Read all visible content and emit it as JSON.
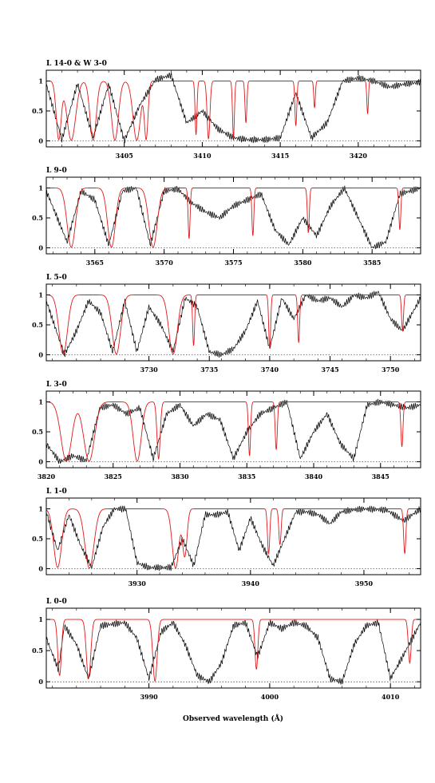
{
  "figure": {
    "xlabel": "Observed wavelength (Å)",
    "colors": {
      "data": "#000000",
      "model": "#e0191b",
      "zero_line": "#000000"
    }
  },
  "chart_data": [
    {
      "type": "line",
      "label": "L 14-0 & W 3-0",
      "xlim": [
        3400.0,
        3424.0
      ],
      "ylim": [
        -0.1,
        1.18
      ],
      "yticks": [
        0,
        0.5,
        1
      ],
      "ytick_labels": [
        "0",
        "0.5",
        "1"
      ],
      "xticks": [
        3405,
        3410,
        3415,
        3420
      ],
      "xtick_labels": [
        "3405",
        "3410",
        "3415",
        "3420"
      ],
      "series": [
        {
          "role": "model",
          "x": [
            3400.0,
            3402.0,
            3404.0,
            3406.0,
            3408.0,
            3410.0,
            3412.0,
            3414.0,
            3416.0,
            3418.0,
            3420.0,
            3422.0,
            3424.0
          ],
          "y": [
            1.0,
            1.0,
            1.0,
            1.0,
            1.0,
            1.0,
            1.0,
            1.0,
            1.0,
            1.0,
            1.0,
            1.0,
            1.0
          ]
        },
        {
          "role": "data",
          "x": [
            3400.0,
            3401.0,
            3402.0,
            3403.0,
            3404.0,
            3405.0,
            3406.0,
            3407.0,
            3408.0,
            3409.0,
            3410.0,
            3411.0,
            3412.0,
            3413.0,
            3414.0,
            3415.0,
            3416.0,
            3417.0,
            3418.0,
            3419.0,
            3420.0,
            3421.0,
            3422.0,
            3423.0,
            3424.0
          ],
          "y": [
            0.95,
            0.02,
            0.96,
            0.05,
            0.95,
            0.0,
            0.6,
            1.02,
            1.1,
            0.3,
            0.5,
            0.2,
            0.05,
            0.02,
            0.02,
            0.05,
            0.8,
            0.05,
            0.3,
            1.0,
            1.05,
            1.0,
            0.9,
            0.95,
            0.98
          ]
        }
      ],
      "lines": [
        {
          "center": 3400.8,
          "depth": 0.98,
          "width": 0.16
        },
        {
          "center": 3401.6,
          "depth": 0.99,
          "width": 0.28
        },
        {
          "center": 3403.0,
          "depth": 0.99,
          "width": 0.2
        },
        {
          "center": 3404.4,
          "depth": 0.99,
          "width": 0.22
        },
        {
          "center": 3405.8,
          "depth": 0.99,
          "width": 0.24
        },
        {
          "center": 3406.4,
          "depth": 0.98,
          "width": 0.12
        },
        {
          "center": 3409.6,
          "depth": 0.9,
          "width": 0.06
        },
        {
          "center": 3410.4,
          "depth": 0.97,
          "width": 0.09
        },
        {
          "center": 3412.0,
          "depth": 0.95,
          "width": 0.06
        },
        {
          "center": 3412.8,
          "depth": 0.7,
          "width": 0.06
        },
        {
          "center": 3416.0,
          "depth": 0.75,
          "width": 0.06
        },
        {
          "center": 3417.2,
          "depth": 0.45,
          "width": 0.05
        },
        {
          "center": 3420.6,
          "depth": 0.55,
          "width": 0.05
        }
      ]
    },
    {
      "type": "line",
      "label": "L 9-0",
      "xlim": [
        3561.5,
        3588.5
      ],
      "ylim": [
        -0.1,
        1.18
      ],
      "yticks": [
        0,
        0.5,
        1
      ],
      "ytick_labels": [
        "0",
        "0.5",
        "1"
      ],
      "xticks": [
        3565,
        3570,
        3575,
        3580,
        3585
      ],
      "xtick_labels": [
        "3565",
        "3570",
        "3575",
        "3580",
        "3585"
      ],
      "series": [
        {
          "role": "model",
          "x": [
            3561.5,
            3565.0,
            3570.0,
            3575.0,
            3580.0,
            3585.0,
            3588.5
          ],
          "y": [
            1.0,
            1.0,
            1.0,
            1.0,
            1.0,
            1.0,
            1.0
          ]
        },
        {
          "role": "data",
          "x": [
            3561.5,
            3563.0,
            3564.0,
            3565.0,
            3566.0,
            3567.0,
            3568.0,
            3569.0,
            3570.0,
            3571.0,
            3572.0,
            3573.0,
            3574.0,
            3575.0,
            3576.0,
            3577.0,
            3578.0,
            3579.0,
            3580.0,
            3581.0,
            3582.0,
            3583.0,
            3584.0,
            3585.0,
            3586.0,
            3587.0,
            3588.5
          ],
          "y": [
            0.95,
            0.1,
            0.95,
            0.8,
            0.05,
            0.95,
            1.0,
            0.05,
            0.95,
            0.98,
            0.75,
            0.6,
            0.5,
            0.7,
            0.8,
            0.9,
            0.3,
            0.05,
            0.5,
            0.2,
            0.7,
            1.0,
            0.5,
            0.0,
            0.1,
            0.9,
            1.0
          ]
        }
      ],
      "lines": [
        {
          "center": 3563.3,
          "depth": 0.99,
          "width": 0.3
        },
        {
          "center": 3566.2,
          "depth": 0.99,
          "width": 0.28
        },
        {
          "center": 3569.2,
          "depth": 0.99,
          "width": 0.3
        },
        {
          "center": 3571.8,
          "depth": 0.85,
          "width": 0.07
        },
        {
          "center": 3576.4,
          "depth": 0.8,
          "width": 0.07
        },
        {
          "center": 3580.4,
          "depth": 0.75,
          "width": 0.07
        },
        {
          "center": 3587.0,
          "depth": 0.7,
          "width": 0.07
        }
      ]
    },
    {
      "type": "line",
      "label": "L 5-0",
      "xlim": [
        3721.5,
        3752.5
      ],
      "ylim": [
        -0.1,
        1.18
      ],
      "yticks": [
        0,
        0.5,
        1
      ],
      "ytick_labels": [
        "0",
        "0.5",
        "1"
      ],
      "xticks": [
        3730,
        3735,
        3740,
        3745,
        3750
      ],
      "xtick_labels": [
        "3730",
        "3735",
        "3740",
        "3745",
        "3750"
      ],
      "series": [
        {
          "role": "model",
          "x": [
            3721.5,
            3730.0,
            3740.0,
            3752.5
          ],
          "y": [
            1.0,
            1.0,
            1.0,
            1.0
          ]
        },
        {
          "role": "data",
          "x": [
            3721.5,
            3723.0,
            3724.0,
            3725.0,
            3726.0,
            3727.0,
            3728.0,
            3729.0,
            3730.0,
            3731.0,
            3732.0,
            3733.0,
            3734.0,
            3735.0,
            3736.0,
            3737.0,
            3738.0,
            3739.0,
            3740.0,
            3741.0,
            3742.0,
            3743.0,
            3744.0,
            3745.0,
            3746.0,
            3747.0,
            3748.0,
            3749.0,
            3750.0,
            3751.0,
            3752.5
          ],
          "y": [
            0.9,
            0.0,
            0.4,
            0.9,
            0.7,
            0.05,
            0.9,
            0.05,
            0.8,
            0.5,
            0.05,
            0.95,
            0.8,
            0.05,
            0.0,
            0.1,
            0.4,
            0.9,
            0.1,
            0.95,
            0.6,
            1.0,
            0.9,
            0.95,
            0.8,
            1.0,
            0.95,
            1.05,
            0.6,
            0.4,
            0.95
          ]
        }
      ],
      "lines": [
        {
          "center": 3722.9,
          "depth": 0.99,
          "width": 0.35
        },
        {
          "center": 3727.3,
          "depth": 0.99,
          "width": 0.35
        },
        {
          "center": 3732.0,
          "depth": 0.99,
          "width": 0.35
        },
        {
          "center": 3733.7,
          "depth": 0.85,
          "width": 0.08
        },
        {
          "center": 3740.0,
          "depth": 0.9,
          "width": 0.08
        },
        {
          "center": 3742.4,
          "depth": 0.8,
          "width": 0.08
        },
        {
          "center": 3751.0,
          "depth": 0.6,
          "width": 0.08
        }
      ]
    },
    {
      "type": "line",
      "label": "L 3-0",
      "xlim": [
        3820.0,
        3848.0
      ],
      "ylim": [
        -0.1,
        1.18
      ],
      "yticks": [
        0,
        0.5,
        1
      ],
      "ytick_labels": [
        "0",
        "0.5",
        "1"
      ],
      "xticks": [
        3820,
        3825,
        3830,
        3835,
        3840,
        3845
      ],
      "xtick_labels": [
        "3820",
        "3825",
        "3830",
        "3835",
        "3840",
        "3845"
      ],
      "series": [
        {
          "role": "model",
          "x": [
            3820.0,
            3830.0,
            3840.0,
            3848.0
          ],
          "y": [
            1.0,
            1.0,
            1.0,
            1.0
          ]
        },
        {
          "role": "data",
          "x": [
            3820.0,
            3821.0,
            3822.0,
            3823.0,
            3824.0,
            3825.0,
            3826.0,
            3827.0,
            3828.0,
            3829.0,
            3830.0,
            3831.0,
            3832.0,
            3833.0,
            3834.0,
            3835.0,
            3836.0,
            3837.0,
            3838.0,
            3839.0,
            3840.0,
            3841.0,
            3842.0,
            3843.0,
            3844.0,
            3845.0,
            3846.0,
            3847.0,
            3848.0
          ],
          "y": [
            0.3,
            0.0,
            0.1,
            0.02,
            0.9,
            0.95,
            0.8,
            0.9,
            0.05,
            0.8,
            0.95,
            0.6,
            0.8,
            0.7,
            0.05,
            0.5,
            0.8,
            0.9,
            1.0,
            0.05,
            0.5,
            0.8,
            0.3,
            0.05,
            0.95,
            1.0,
            0.95,
            0.9,
            0.95
          ]
        }
      ],
      "lines": [
        {
          "center": 3821.5,
          "depth": 0.99,
          "width": 0.4
        },
        {
          "center": 3823.2,
          "depth": 0.99,
          "width": 0.4
        },
        {
          "center": 3826.8,
          "depth": 0.99,
          "width": 0.3
        },
        {
          "center": 3828.4,
          "depth": 0.95,
          "width": 0.12
        },
        {
          "center": 3835.2,
          "depth": 0.9,
          "width": 0.08
        },
        {
          "center": 3837.2,
          "depth": 0.8,
          "width": 0.08
        },
        {
          "center": 3846.6,
          "depth": 0.75,
          "width": 0.08
        }
      ]
    },
    {
      "type": "line",
      "label": "L 1-0",
      "xlim": [
        3922.0,
        3955.0
      ],
      "ylim": [
        -0.1,
        1.18
      ],
      "yticks": [
        0,
        0.5,
        1
      ],
      "ytick_labels": [
        "0",
        "0.5",
        "1"
      ],
      "xticks": [
        3930,
        3940,
        3950
      ],
      "xtick_labels": [
        "3930",
        "3940",
        "3950"
      ],
      "series": [
        {
          "role": "model",
          "x": [
            3922.0,
            3935.0,
            3945.0,
            3955.0
          ],
          "y": [
            1.0,
            1.0,
            1.0,
            1.0
          ]
        },
        {
          "role": "data",
          "x": [
            3922.0,
            3923.0,
            3924.0,
            3925.0,
            3926.0,
            3927.0,
            3928.0,
            3929.0,
            3930.0,
            3931.0,
            3932.0,
            3933.0,
            3934.0,
            3935.0,
            3936.0,
            3937.0,
            3938.0,
            3939.0,
            3940.0,
            3941.0,
            3942.0,
            3943.0,
            3944.0,
            3945.0,
            3946.0,
            3947.0,
            3948.0,
            3949.0,
            3950.0,
            3952.0,
            3953.5,
            3955.0
          ],
          "y": [
            0.95,
            0.3,
            0.9,
            0.4,
            0.02,
            0.7,
            1.0,
            1.0,
            0.1,
            0.02,
            0.02,
            0.02,
            0.5,
            0.05,
            0.9,
            0.9,
            0.95,
            0.3,
            0.85,
            0.4,
            0.05,
            0.5,
            0.95,
            0.95,
            0.9,
            0.75,
            0.95,
            0.98,
            1.0,
            0.98,
            0.8,
            1.0
          ]
        }
      ],
      "lines": [
        {
          "center": 3923.0,
          "depth": 0.98,
          "width": 0.35
        },
        {
          "center": 3925.8,
          "depth": 0.99,
          "width": 0.4
        },
        {
          "center": 3933.4,
          "depth": 0.99,
          "width": 0.3
        },
        {
          "center": 3934.2,
          "depth": 0.8,
          "width": 0.2
        },
        {
          "center": 3941.6,
          "depth": 0.75,
          "width": 0.1
        },
        {
          "center": 3942.6,
          "depth": 0.6,
          "width": 0.1
        },
        {
          "center": 3953.6,
          "depth": 0.75,
          "width": 0.1
        }
      ]
    },
    {
      "type": "line",
      "label": "L 0-0",
      "xlim": [
        3981.5,
        4012.5
      ],
      "ylim": [
        -0.1,
        1.18
      ],
      "yticks": [
        0,
        0.5,
        1
      ],
      "ytick_labels": [
        "0",
        "0.5",
        "1"
      ],
      "xticks": [
        3990,
        4000,
        4010
      ],
      "xtick_labels": [
        "3990",
        "4000",
        "4010"
      ],
      "series": [
        {
          "role": "model",
          "x": [
            3981.5,
            3990.0,
            4000.0,
            4012.5
          ],
          "y": [
            1.0,
            1.0,
            1.0,
            1.0
          ]
        },
        {
          "role": "data",
          "x": [
            3981.5,
            3982.5,
            3983.0,
            3984.0,
            3985.0,
            3986.0,
            3988.0,
            3989.0,
            3990.0,
            3991.0,
            3992.0,
            3993.0,
            3994.0,
            3995.0,
            3996.0,
            3997.0,
            3998.0,
            3999.0,
            4000.0,
            4001.0,
            4002.0,
            4003.0,
            4004.0,
            4005.0,
            4006.0,
            4007.0,
            4008.0,
            4009.0,
            4010.0,
            4011.0,
            4012.5
          ],
          "y": [
            0.7,
            0.2,
            0.9,
            0.6,
            0.05,
            0.9,
            0.95,
            0.7,
            0.05,
            0.8,
            0.95,
            0.6,
            0.1,
            0.0,
            0.3,
            0.9,
            0.95,
            0.4,
            0.95,
            0.85,
            0.95,
            0.9,
            0.7,
            0.05,
            0.0,
            0.6,
            0.9,
            0.95,
            0.05,
            0.4,
            0.95
          ]
        }
      ],
      "lines": [
        {
          "center": 3982.6,
          "depth": 0.9,
          "width": 0.15
        },
        {
          "center": 3985.0,
          "depth": 0.95,
          "width": 0.18
        },
        {
          "center": 3990.5,
          "depth": 0.99,
          "width": 0.18
        },
        {
          "center": 3998.9,
          "depth": 0.8,
          "width": 0.12
        },
        {
          "center": 4011.6,
          "depth": 0.7,
          "width": 0.12
        }
      ]
    }
  ]
}
